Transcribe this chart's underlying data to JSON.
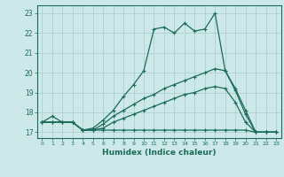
{
  "xlabel": "Humidex (Indice chaleur)",
  "xlim": [
    -0.5,
    23.5
  ],
  "ylim": [
    16.7,
    23.4
  ],
  "yticks": [
    17,
    18,
    19,
    20,
    21,
    22,
    23
  ],
  "xticks": [
    0,
    1,
    2,
    3,
    4,
    5,
    6,
    7,
    8,
    9,
    10,
    11,
    12,
    13,
    14,
    15,
    16,
    17,
    18,
    19,
    20,
    21,
    22,
    23
  ],
  "bg_color": "#cce8e8",
  "line_color": "#1a6b5a",
  "grid_color": "#aacccc",
  "line1_x": [
    0,
    1,
    2,
    3,
    4,
    5,
    6,
    7,
    8,
    9,
    10,
    11,
    12,
    13,
    14,
    15,
    16,
    17,
    18,
    19,
    20,
    21,
    22,
    23
  ],
  "line1_y": [
    17.5,
    17.8,
    17.5,
    17.5,
    17.1,
    17.2,
    17.6,
    18.1,
    18.8,
    19.4,
    20.1,
    22.2,
    22.3,
    22.0,
    22.5,
    22.1,
    22.2,
    23.0,
    20.1,
    19.1,
    17.9,
    17.0,
    17.0,
    17.0
  ],
  "line2_x": [
    0,
    1,
    2,
    3,
    4,
    5,
    6,
    7,
    8,
    9,
    10,
    11,
    12,
    13,
    14,
    15,
    16,
    17,
    18,
    19,
    20,
    21,
    22,
    23
  ],
  "line2_y": [
    17.5,
    17.5,
    17.5,
    17.5,
    17.1,
    17.1,
    17.4,
    17.8,
    18.1,
    18.4,
    18.7,
    18.9,
    19.2,
    19.4,
    19.6,
    19.8,
    20.0,
    20.2,
    20.1,
    19.2,
    18.1,
    17.0,
    17.0,
    17.0
  ],
  "line3_x": [
    0,
    1,
    2,
    3,
    4,
    5,
    6,
    7,
    8,
    9,
    10,
    11,
    12,
    13,
    14,
    15,
    16,
    17,
    18,
    19,
    20,
    21,
    22,
    23
  ],
  "line3_y": [
    17.5,
    17.5,
    17.5,
    17.5,
    17.1,
    17.1,
    17.2,
    17.5,
    17.7,
    17.9,
    18.1,
    18.3,
    18.5,
    18.7,
    18.9,
    19.0,
    19.2,
    19.3,
    19.2,
    18.5,
    17.5,
    17.0,
    17.0,
    17.0
  ],
  "line4_x": [
    0,
    1,
    2,
    3,
    4,
    5,
    6,
    7,
    8,
    9,
    10,
    11,
    12,
    13,
    14,
    15,
    16,
    17,
    18,
    19,
    20,
    21,
    22,
    23
  ],
  "line4_y": [
    17.5,
    17.5,
    17.5,
    17.5,
    17.1,
    17.1,
    17.1,
    17.1,
    17.1,
    17.1,
    17.1,
    17.1,
    17.1,
    17.1,
    17.1,
    17.1,
    17.1,
    17.1,
    17.1,
    17.1,
    17.1,
    17.0,
    17.0,
    17.0
  ]
}
